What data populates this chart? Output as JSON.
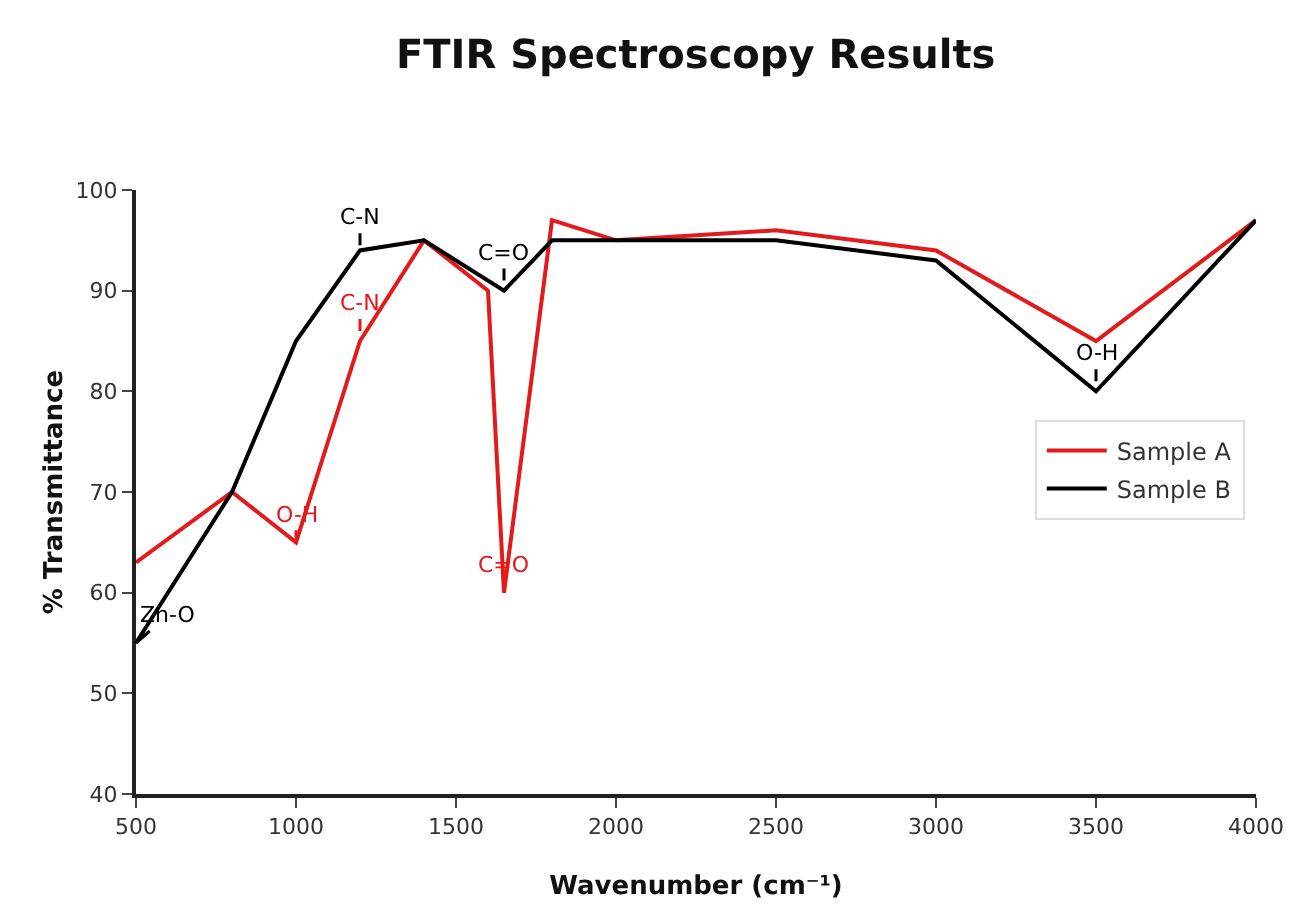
{
  "chart_data": {
    "type": "line",
    "title": "FTIR Spectroscopy Results",
    "xlabel": "Wavenumber (cm⁻¹)",
    "ylabel": "% Transmittance",
    "series": [
      {
        "name": "Sample A",
        "color": "#e31a1c",
        "x": [
          500,
          800,
          1000,
          1200,
          1400,
          1600,
          1650,
          1800,
          2000,
          2500,
          3000,
          3500,
          4000
        ],
        "values": [
          63,
          70,
          65,
          85,
          95,
          90,
          60,
          97,
          95,
          96,
          94,
          85,
          97
        ]
      },
      {
        "name": "Sample B",
        "color": "#000000",
        "x": [
          500,
          800,
          1000,
          1200,
          1400,
          1650,
          1800,
          2000,
          2500,
          3000,
          3500,
          4000
        ],
        "values": [
          55,
          70,
          85,
          94,
          95,
          90,
          95,
          95,
          95,
          93,
          80,
          97
        ]
      }
    ],
    "annotations": [
      {
        "text": "Zn-O",
        "x": 500,
        "y": 55
      },
      {
        "text": "C-N",
        "x": 1200,
        "y": 94.5
      },
      {
        "text": "C-N",
        "x": 1200,
        "y": 86
      },
      {
        "text": "O-H",
        "x": 1000,
        "y": 65
      },
      {
        "text": "C=O",
        "x": 1650,
        "y": 91
      },
      {
        "text": "C=O",
        "x": 1650,
        "y": 60
      },
      {
        "text": "O-H",
        "x": 3500,
        "y": 81
      }
    ],
    "xlim": [
      500,
      4000
    ],
    "xticks": [
      500,
      1000,
      1500,
      2000,
      2500,
      3000,
      3500,
      4000
    ],
    "ylim": [
      40,
      100
    ],
    "yticks": [
      40,
      50,
      60,
      70,
      80,
      90,
      100
    ],
    "grid": false,
    "legend": "right",
    "marker": "none",
    "line_style": "solid"
  }
}
